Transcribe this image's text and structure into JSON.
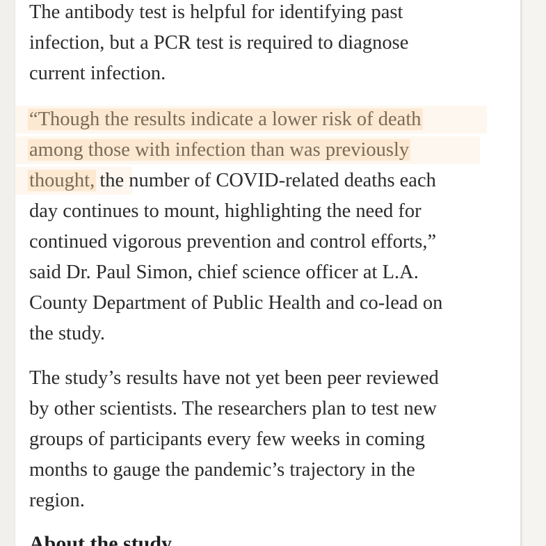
{
  "article": {
    "paragraph_1": {
      "lines": [
        "The antibody test is helpful for identifying past",
        "infection, but a PCR test is required to diagnose",
        "current infection."
      ]
    },
    "paragraph_2": {
      "highlighted": [
        "“Though the results indicate a lower risk of death",
        "among those with infection than was previously",
        "thought,"
      ],
      "line_3_rest": " the number of COVID-related deaths each",
      "lines": [
        "day continues to mount, highlighting the need for",
        "continued vigorous prevention and control efforts,”",
        "said Dr. Paul Simon, chief science officer at L.A.",
        "County Department of Public Health and co-lead on",
        "the study."
      ]
    },
    "paragraph_3": {
      "lines": [
        "The study’s results have not yet been peer reviewed",
        "by other scientists. The researchers plan to test new",
        "groups of participants every few weeks in coming",
        "months to gauge the pandemic’s trajectory in the",
        "region."
      ]
    },
    "section_heading": "About the study"
  },
  "colors": {
    "highlight": "#fcd6aa",
    "text": "#2b2b2b",
    "page": "#ffffff",
    "background": "#f4f3ef"
  }
}
